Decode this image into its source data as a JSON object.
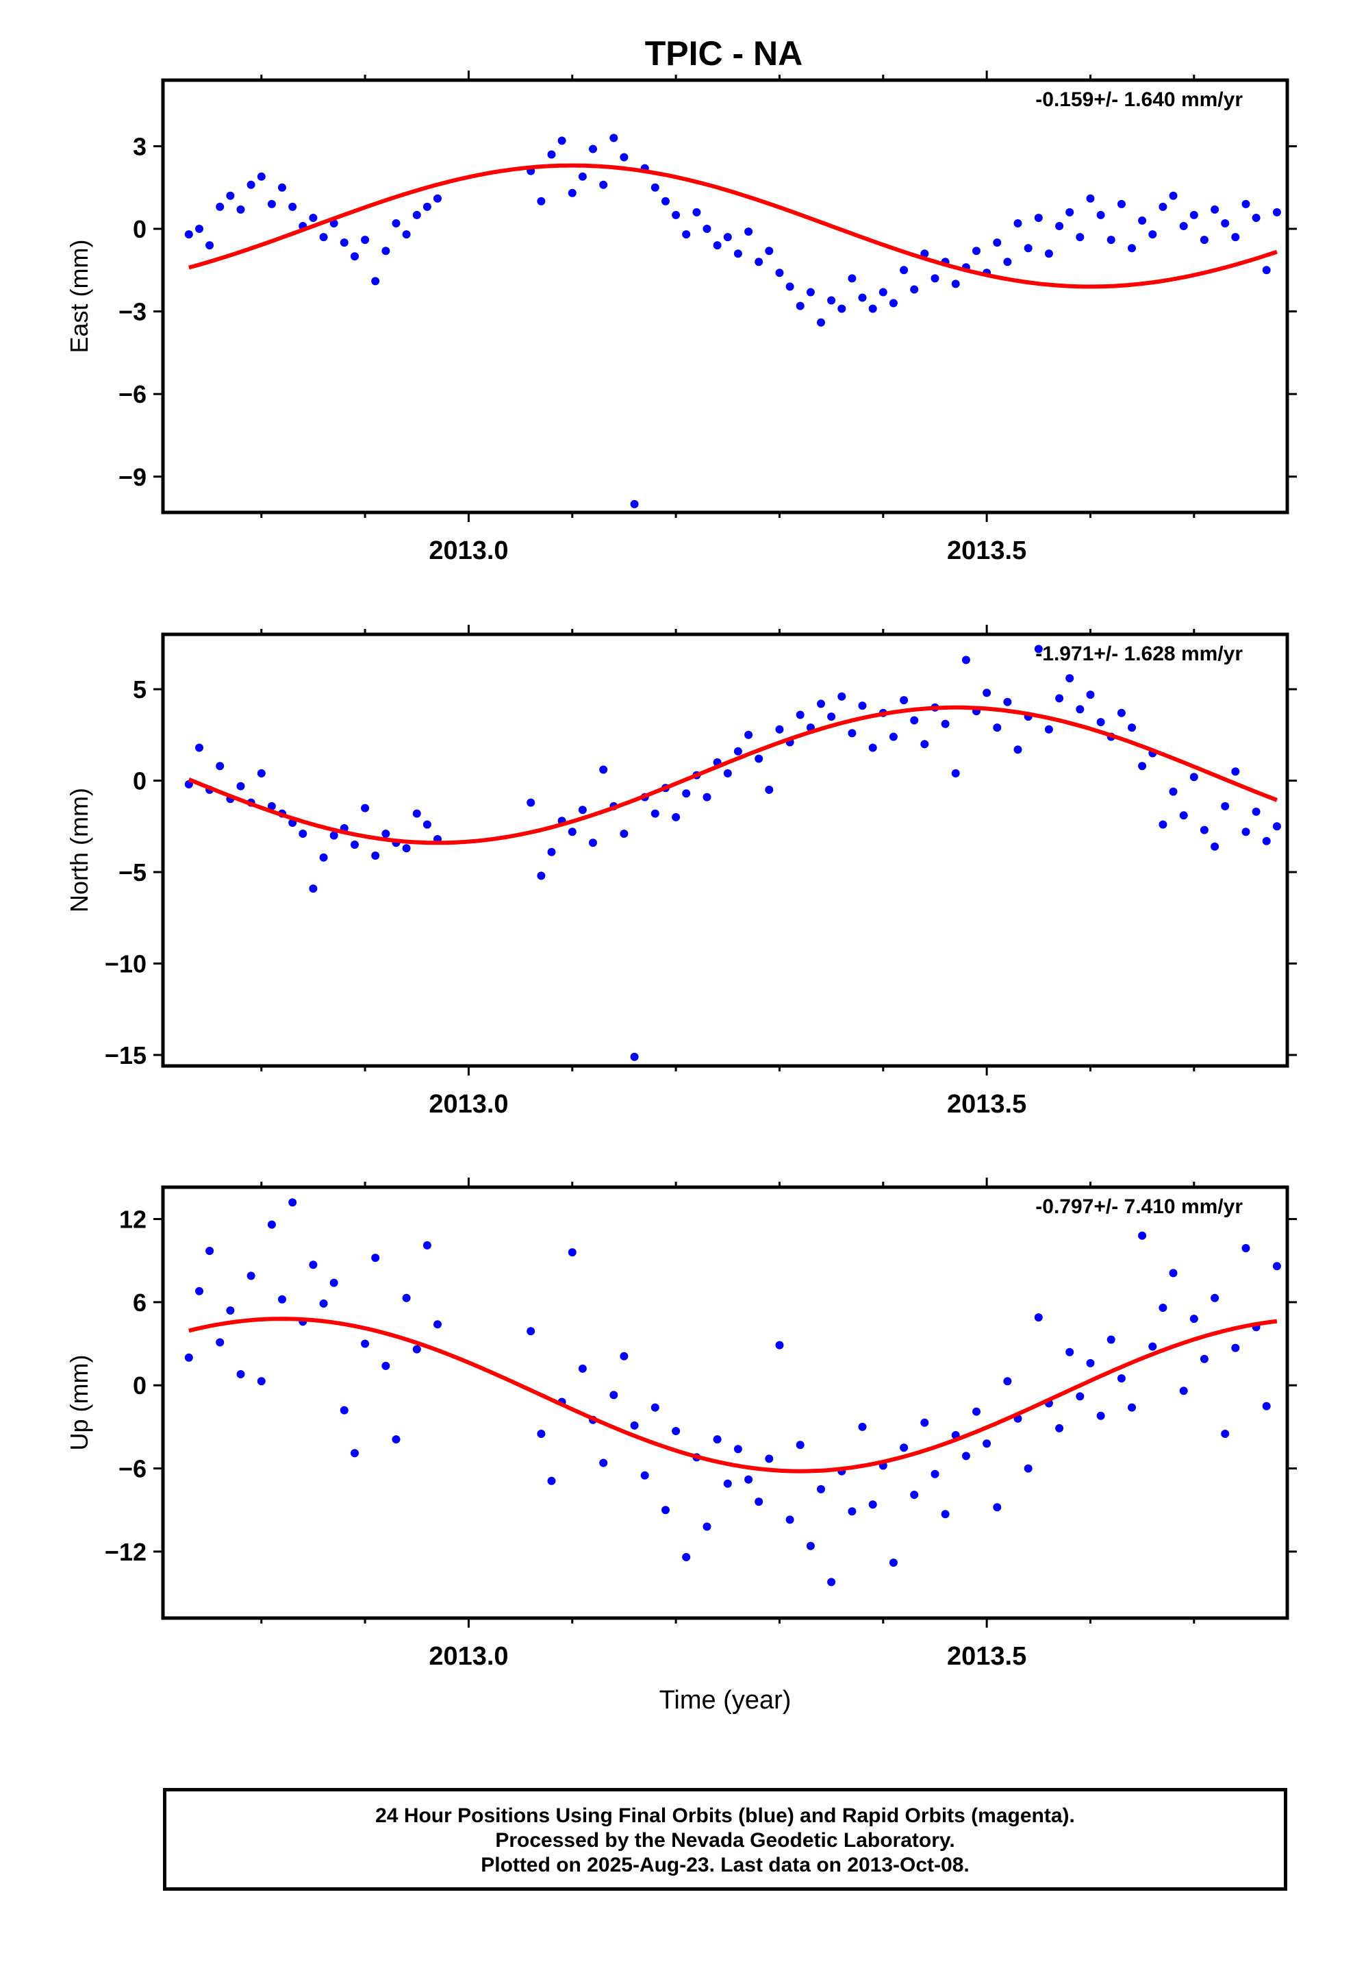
{
  "title": "TPIC - NA",
  "colors": {
    "points": "#0000ff",
    "fit": "#ff0000",
    "frame": "#000000"
  },
  "caption": {
    "line1": "24 Hour Positions Using Final Orbits (blue) and Rapid Orbits (magenta).",
    "line2": "Processed by the Nevada Geodetic Laboratory.",
    "line3": "Plotted on 2025-Aug-23. Last data on 2013-Oct-08."
  },
  "chart_data": [
    {
      "type": "scatter",
      "ylabel": "East (mm)",
      "xlabel": "",
      "rate_text": "-0.159+/- 1.640 mm/yr",
      "xlim": [
        2012.705,
        2013.79
      ],
      "ylim": [
        -10.3,
        5.4
      ],
      "yticks": [
        3,
        0,
        -3,
        -6,
        -9
      ],
      "ytick_labels": [
        "3",
        "0",
        "−3",
        "−6",
        "−9"
      ],
      "xticks": [
        2013.0,
        2013.5
      ],
      "xtick_labels": [
        "2013.0",
        "2013.5"
      ],
      "fit": {
        "offset": 0.1,
        "amplitude": 2.2,
        "peak": 2013.1
      },
      "points": [
        [
          2012.73,
          -0.2
        ],
        [
          2012.74,
          0.0
        ],
        [
          2012.75,
          -0.6
        ],
        [
          2012.76,
          0.8
        ],
        [
          2012.77,
          1.2
        ],
        [
          2012.78,
          0.7
        ],
        [
          2012.79,
          1.6
        ],
        [
          2012.8,
          1.9
        ],
        [
          2012.81,
          0.9
        ],
        [
          2012.82,
          1.5
        ],
        [
          2012.83,
          0.8
        ],
        [
          2012.84,
          0.1
        ],
        [
          2012.85,
          0.4
        ],
        [
          2012.86,
          -0.3
        ],
        [
          2012.87,
          0.2
        ],
        [
          2012.88,
          -0.5
        ],
        [
          2012.89,
          -1.0
        ],
        [
          2012.9,
          -0.4
        ],
        [
          2012.91,
          -1.9
        ],
        [
          2012.92,
          -0.8
        ],
        [
          2012.93,
          0.2
        ],
        [
          2012.94,
          -0.2
        ],
        [
          2012.95,
          0.5
        ],
        [
          2012.96,
          0.8
        ],
        [
          2012.97,
          1.1
        ],
        [
          2013.06,
          2.1
        ],
        [
          2013.07,
          1.0
        ],
        [
          2013.08,
          2.7
        ],
        [
          2013.09,
          3.2
        ],
        [
          2013.1,
          1.3
        ],
        [
          2013.11,
          1.9
        ],
        [
          2013.12,
          2.9
        ],
        [
          2013.13,
          1.6
        ],
        [
          2013.14,
          3.3
        ],
        [
          2013.15,
          2.6
        ],
        [
          2013.16,
          -10.0
        ],
        [
          2013.17,
          2.2
        ],
        [
          2013.18,
          1.5
        ],
        [
          2013.19,
          1.0
        ],
        [
          2013.2,
          0.5
        ],
        [
          2013.21,
          -0.2
        ],
        [
          2013.22,
          0.6
        ],
        [
          2013.23,
          0.0
        ],
        [
          2013.24,
          -0.6
        ],
        [
          2013.25,
          -0.3
        ],
        [
          2013.26,
          -0.9
        ],
        [
          2013.27,
          -0.1
        ],
        [
          2013.28,
          -1.2
        ],
        [
          2013.29,
          -0.8
        ],
        [
          2013.3,
          -1.6
        ],
        [
          2013.31,
          -2.1
        ],
        [
          2013.32,
          -2.8
        ],
        [
          2013.33,
          -2.3
        ],
        [
          2013.34,
          -3.4
        ],
        [
          2013.35,
          -2.6
        ],
        [
          2013.36,
          -2.9
        ],
        [
          2013.37,
          -1.8
        ],
        [
          2013.38,
          -2.5
        ],
        [
          2013.39,
          -2.9
        ],
        [
          2013.4,
          -2.3
        ],
        [
          2013.41,
          -2.7
        ],
        [
          2013.42,
          -1.5
        ],
        [
          2013.43,
          -2.2
        ],
        [
          2013.44,
          -0.9
        ],
        [
          2013.45,
          -1.8
        ],
        [
          2013.46,
          -1.2
        ],
        [
          2013.47,
          -2.0
        ],
        [
          2013.48,
          -1.4
        ],
        [
          2013.49,
          -0.8
        ],
        [
          2013.5,
          -1.6
        ],
        [
          2013.51,
          -0.5
        ],
        [
          2013.52,
          -1.2
        ],
        [
          2013.53,
          0.2
        ],
        [
          2013.54,
          -0.7
        ],
        [
          2013.55,
          0.4
        ],
        [
          2013.56,
          -0.9
        ],
        [
          2013.57,
          0.1
        ],
        [
          2013.58,
          0.6
        ],
        [
          2013.59,
          -0.3
        ],
        [
          2013.6,
          1.1
        ],
        [
          2013.61,
          0.5
        ],
        [
          2013.62,
          -0.4
        ],
        [
          2013.63,
          0.9
        ],
        [
          2013.64,
          -0.7
        ],
        [
          2013.65,
          0.3
        ],
        [
          2013.66,
          -0.2
        ],
        [
          2013.67,
          0.8
        ],
        [
          2013.68,
          1.2
        ],
        [
          2013.69,
          0.1
        ],
        [
          2013.7,
          0.5
        ],
        [
          2013.71,
          -0.4
        ],
        [
          2013.72,
          0.7
        ],
        [
          2013.73,
          0.2
        ],
        [
          2013.74,
          -0.3
        ],
        [
          2013.75,
          0.9
        ],
        [
          2013.76,
          0.4
        ],
        [
          2013.77,
          -1.5
        ],
        [
          2013.78,
          0.6
        ]
      ]
    },
    {
      "type": "scatter",
      "ylabel": "North (mm)",
      "xlabel": "",
      "rate_text": "-1.971+/- 1.628 mm/yr",
      "xlim": [
        2012.705,
        2013.79
      ],
      "ylim": [
        -15.6,
        8.0
      ],
      "yticks": [
        5,
        0,
        -5,
        -10,
        -15
      ],
      "ytick_labels": [
        "5",
        "0",
        "−5",
        "−10",
        "−15"
      ],
      "xticks": [
        2013.0,
        2013.5
      ],
      "xtick_labels": [
        "2013.0",
        "2013.5"
      ],
      "fit": {
        "offset": 0.3,
        "amplitude": 3.7,
        "peak": 2013.47
      },
      "points": [
        [
          2012.73,
          -0.2
        ],
        [
          2012.74,
          1.8
        ],
        [
          2012.75,
          -0.5
        ],
        [
          2012.76,
          0.8
        ],
        [
          2012.77,
          -1.0
        ],
        [
          2012.78,
          -0.3
        ],
        [
          2012.79,
          -1.2
        ],
        [
          2012.8,
          0.4
        ],
        [
          2012.81,
          -1.4
        ],
        [
          2012.82,
          -1.8
        ],
        [
          2012.83,
          -2.3
        ],
        [
          2012.84,
          -2.9
        ],
        [
          2012.85,
          -5.9
        ],
        [
          2012.86,
          -4.2
        ],
        [
          2012.87,
          -3.0
        ],
        [
          2012.88,
          -2.6
        ],
        [
          2012.89,
          -3.5
        ],
        [
          2012.9,
          -1.5
        ],
        [
          2012.91,
          -4.1
        ],
        [
          2012.92,
          -2.9
        ],
        [
          2012.93,
          -3.4
        ],
        [
          2012.94,
          -3.7
        ],
        [
          2012.95,
          -1.8
        ],
        [
          2012.96,
          -2.4
        ],
        [
          2012.97,
          -3.2
        ],
        [
          2013.06,
          -1.2
        ],
        [
          2013.07,
          -5.2
        ],
        [
          2013.08,
          -3.9
        ],
        [
          2013.09,
          -2.2
        ],
        [
          2013.1,
          -2.8
        ],
        [
          2013.11,
          -1.6
        ],
        [
          2013.12,
          -3.4
        ],
        [
          2013.13,
          0.6
        ],
        [
          2013.14,
          -1.4
        ],
        [
          2013.15,
          -2.9
        ],
        [
          2013.16,
          -15.1
        ],
        [
          2013.17,
          -0.9
        ],
        [
          2013.18,
          -1.8
        ],
        [
          2013.19,
          -0.4
        ],
        [
          2013.2,
          -2.0
        ],
        [
          2013.21,
          -0.7
        ],
        [
          2013.22,
          0.3
        ],
        [
          2013.23,
          -0.9
        ],
        [
          2013.24,
          1.0
        ],
        [
          2013.25,
          0.4
        ],
        [
          2013.26,
          1.6
        ],
        [
          2013.27,
          2.5
        ],
        [
          2013.28,
          1.2
        ],
        [
          2013.29,
          -0.5
        ],
        [
          2013.3,
          2.8
        ],
        [
          2013.31,
          2.1
        ],
        [
          2013.32,
          3.6
        ],
        [
          2013.33,
          2.9
        ],
        [
          2013.34,
          4.2
        ],
        [
          2013.35,
          3.5
        ],
        [
          2013.36,
          4.6
        ],
        [
          2013.37,
          2.6
        ],
        [
          2013.38,
          4.1
        ],
        [
          2013.39,
          1.8
        ],
        [
          2013.4,
          3.7
        ],
        [
          2013.41,
          2.4
        ],
        [
          2013.42,
          4.4
        ],
        [
          2013.43,
          3.3
        ],
        [
          2013.44,
          2.0
        ],
        [
          2013.45,
          4.0
        ],
        [
          2013.46,
          3.1
        ],
        [
          2013.47,
          0.4
        ],
        [
          2013.48,
          6.6
        ],
        [
          2013.49,
          3.8
        ],
        [
          2013.5,
          4.8
        ],
        [
          2013.51,
          2.9
        ],
        [
          2013.52,
          4.3
        ],
        [
          2013.53,
          1.7
        ],
        [
          2013.54,
          3.5
        ],
        [
          2013.55,
          7.2
        ],
        [
          2013.56,
          2.8
        ],
        [
          2013.57,
          4.5
        ],
        [
          2013.58,
          5.6
        ],
        [
          2013.59,
          3.9
        ],
        [
          2013.6,
          4.7
        ],
        [
          2013.61,
          3.2
        ],
        [
          2013.62,
          2.4
        ],
        [
          2013.63,
          3.7
        ],
        [
          2013.64,
          2.9
        ],
        [
          2013.65,
          0.8
        ],
        [
          2013.66,
          1.5
        ],
        [
          2013.67,
          -2.4
        ],
        [
          2013.68,
          -0.6
        ],
        [
          2013.69,
          -1.9
        ],
        [
          2013.7,
          0.2
        ],
        [
          2013.71,
          -2.7
        ],
        [
          2013.72,
          -3.6
        ],
        [
          2013.73,
          -1.4
        ],
        [
          2013.74,
          0.5
        ],
        [
          2013.75,
          -2.8
        ],
        [
          2013.76,
          -1.7
        ],
        [
          2013.77,
          -3.3
        ],
        [
          2013.78,
          -2.5
        ]
      ]
    },
    {
      "type": "scatter",
      "ylabel": "Up (mm)",
      "xlabel": "Time (year)",
      "rate_text": "-0.797+/- 7.410 mm/yr",
      "xlim": [
        2012.705,
        2013.79
      ],
      "ylim": [
        -16.8,
        14.3
      ],
      "yticks": [
        12,
        6,
        0,
        -6,
        -12
      ],
      "ytick_labels": [
        "12",
        "6",
        "0",
        "−6",
        "−12"
      ],
      "xticks": [
        2013.0,
        2013.5
      ],
      "xtick_labels": [
        "2013.0",
        "2013.5"
      ],
      "fit": {
        "offset": -0.7,
        "amplitude": 5.5,
        "peak": 2012.82
      },
      "points": [
        [
          2012.73,
          2.0
        ],
        [
          2012.74,
          6.8
        ],
        [
          2012.75,
          9.7
        ],
        [
          2012.76,
          3.1
        ],
        [
          2012.77,
          5.4
        ],
        [
          2012.78,
          0.8
        ],
        [
          2012.79,
          7.9
        ],
        [
          2012.8,
          0.3
        ],
        [
          2012.81,
          11.6
        ],
        [
          2012.82,
          6.2
        ],
        [
          2012.83,
          13.2
        ],
        [
          2012.84,
          4.6
        ],
        [
          2012.85,
          8.7
        ],
        [
          2012.86,
          5.9
        ],
        [
          2012.87,
          7.4
        ],
        [
          2012.88,
          -1.8
        ],
        [
          2012.89,
          -4.9
        ],
        [
          2012.9,
          3.0
        ],
        [
          2012.91,
          9.2
        ],
        [
          2012.92,
          1.4
        ],
        [
          2012.93,
          -3.9
        ],
        [
          2012.94,
          6.3
        ],
        [
          2012.95,
          2.6
        ],
        [
          2012.96,
          10.1
        ],
        [
          2012.97,
          4.4
        ],
        [
          2013.06,
          3.9
        ],
        [
          2013.07,
          -3.5
        ],
        [
          2013.08,
          -6.9
        ],
        [
          2013.09,
          -1.2
        ],
        [
          2013.1,
          9.6
        ],
        [
          2013.11,
          1.2
        ],
        [
          2013.12,
          -2.5
        ],
        [
          2013.13,
          -5.6
        ],
        [
          2013.14,
          -0.7
        ],
        [
          2013.15,
          2.1
        ],
        [
          2013.16,
          -2.9
        ],
        [
          2013.17,
          -6.5
        ],
        [
          2013.18,
          -1.6
        ],
        [
          2013.19,
          -9.0
        ],
        [
          2013.2,
          -3.3
        ],
        [
          2013.21,
          -12.4
        ],
        [
          2013.22,
          -5.2
        ],
        [
          2013.23,
          -10.2
        ],
        [
          2013.24,
          -3.9
        ],
        [
          2013.25,
          -7.1
        ],
        [
          2013.26,
          -4.6
        ],
        [
          2013.27,
          -6.8
        ],
        [
          2013.28,
          -8.4
        ],
        [
          2013.29,
          -5.3
        ],
        [
          2013.3,
          2.9
        ],
        [
          2013.31,
          -9.7
        ],
        [
          2013.32,
          -4.3
        ],
        [
          2013.33,
          -11.6
        ],
        [
          2013.34,
          -7.5
        ],
        [
          2013.35,
          -14.2
        ],
        [
          2013.36,
          -6.2
        ],
        [
          2013.37,
          -9.1
        ],
        [
          2013.38,
          -3.0
        ],
        [
          2013.39,
          -8.6
        ],
        [
          2013.4,
          -5.8
        ],
        [
          2013.41,
          -12.8
        ],
        [
          2013.42,
          -4.5
        ],
        [
          2013.43,
          -7.9
        ],
        [
          2013.44,
          -2.7
        ],
        [
          2013.45,
          -6.4
        ],
        [
          2013.46,
          -9.3
        ],
        [
          2013.47,
          -3.6
        ],
        [
          2013.48,
          -5.1
        ],
        [
          2013.49,
          -1.9
        ],
        [
          2013.5,
          -4.2
        ],
        [
          2013.51,
          -8.8
        ],
        [
          2013.52,
          0.3
        ],
        [
          2013.53,
          -2.4
        ],
        [
          2013.54,
          -6.0
        ],
        [
          2013.55,
          4.9
        ],
        [
          2013.56,
          -1.3
        ],
        [
          2013.57,
          -3.1
        ],
        [
          2013.58,
          2.4
        ],
        [
          2013.59,
          -0.8
        ],
        [
          2013.6,
          1.6
        ],
        [
          2013.61,
          -2.2
        ],
        [
          2013.62,
          3.3
        ],
        [
          2013.63,
          0.5
        ],
        [
          2013.64,
          -1.6
        ],
        [
          2013.65,
          10.8
        ],
        [
          2013.66,
          2.8
        ],
        [
          2013.67,
          5.6
        ],
        [
          2013.68,
          8.1
        ],
        [
          2013.69,
          -0.4
        ],
        [
          2013.7,
          4.8
        ],
        [
          2013.71,
          1.9
        ],
        [
          2013.72,
          6.3
        ],
        [
          2013.73,
          -3.5
        ],
        [
          2013.74,
          2.7
        ],
        [
          2013.75,
          9.9
        ],
        [
          2013.76,
          4.2
        ],
        [
          2013.77,
          -1.5
        ],
        [
          2013.78,
          8.6
        ]
      ]
    }
  ]
}
